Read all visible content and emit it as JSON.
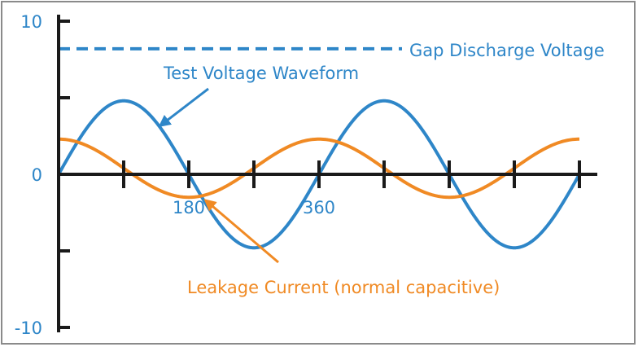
{
  "chart_data": {
    "type": "line",
    "title": "",
    "xlabel": "",
    "ylabel": "",
    "xlim": [
      0,
      720
    ],
    "ylim": [
      -10,
      10
    ],
    "x_ticks": [
      0,
      90,
      180,
      270,
      360,
      450,
      540,
      630,
      720
    ],
    "x_tick_labels": [
      {
        "x": 180,
        "text": "180"
      },
      {
        "x": 360,
        "text": "360"
      }
    ],
    "y_ticks": [
      10,
      5,
      0,
      -5,
      -10
    ],
    "y_tick_labels": [
      {
        "y": 10,
        "text": "10"
      },
      {
        "y": 0,
        "text": "0"
      },
      {
        "y": -10,
        "text": "-10"
      }
    ],
    "grid": false,
    "series": [
      {
        "name": "Test Voltage Waveform",
        "color": "#2e86c8",
        "function": "sine",
        "amplitude": 4.8,
        "phase_deg": 0,
        "offset": 0
      },
      {
        "name": "Leakage Current (normal capacitive)",
        "color": "#f08a24",
        "function": "sine",
        "amplitude": 1.9,
        "phase_deg": 90,
        "offset": 0.4
      },
      {
        "name": "Gap Discharge Voltage",
        "color": "#2e86c8",
        "function": "constant",
        "value": 8.2,
        "style": "dashed"
      }
    ],
    "annotations": [
      {
        "text": "Gap Discharge Voltage",
        "series": "Gap Discharge Voltage",
        "color": "#2e86c8"
      },
      {
        "text": "Test Voltage Waveform",
        "series": "Test Voltage Waveform",
        "color": "#2e86c8",
        "arrow_to_x": 135
      },
      {
        "text": "Leakage Current (normal capacitive)",
        "series": "Leakage Current (normal capacitive)",
        "color": "#f08a24",
        "arrow_to_x": 200
      }
    ]
  }
}
